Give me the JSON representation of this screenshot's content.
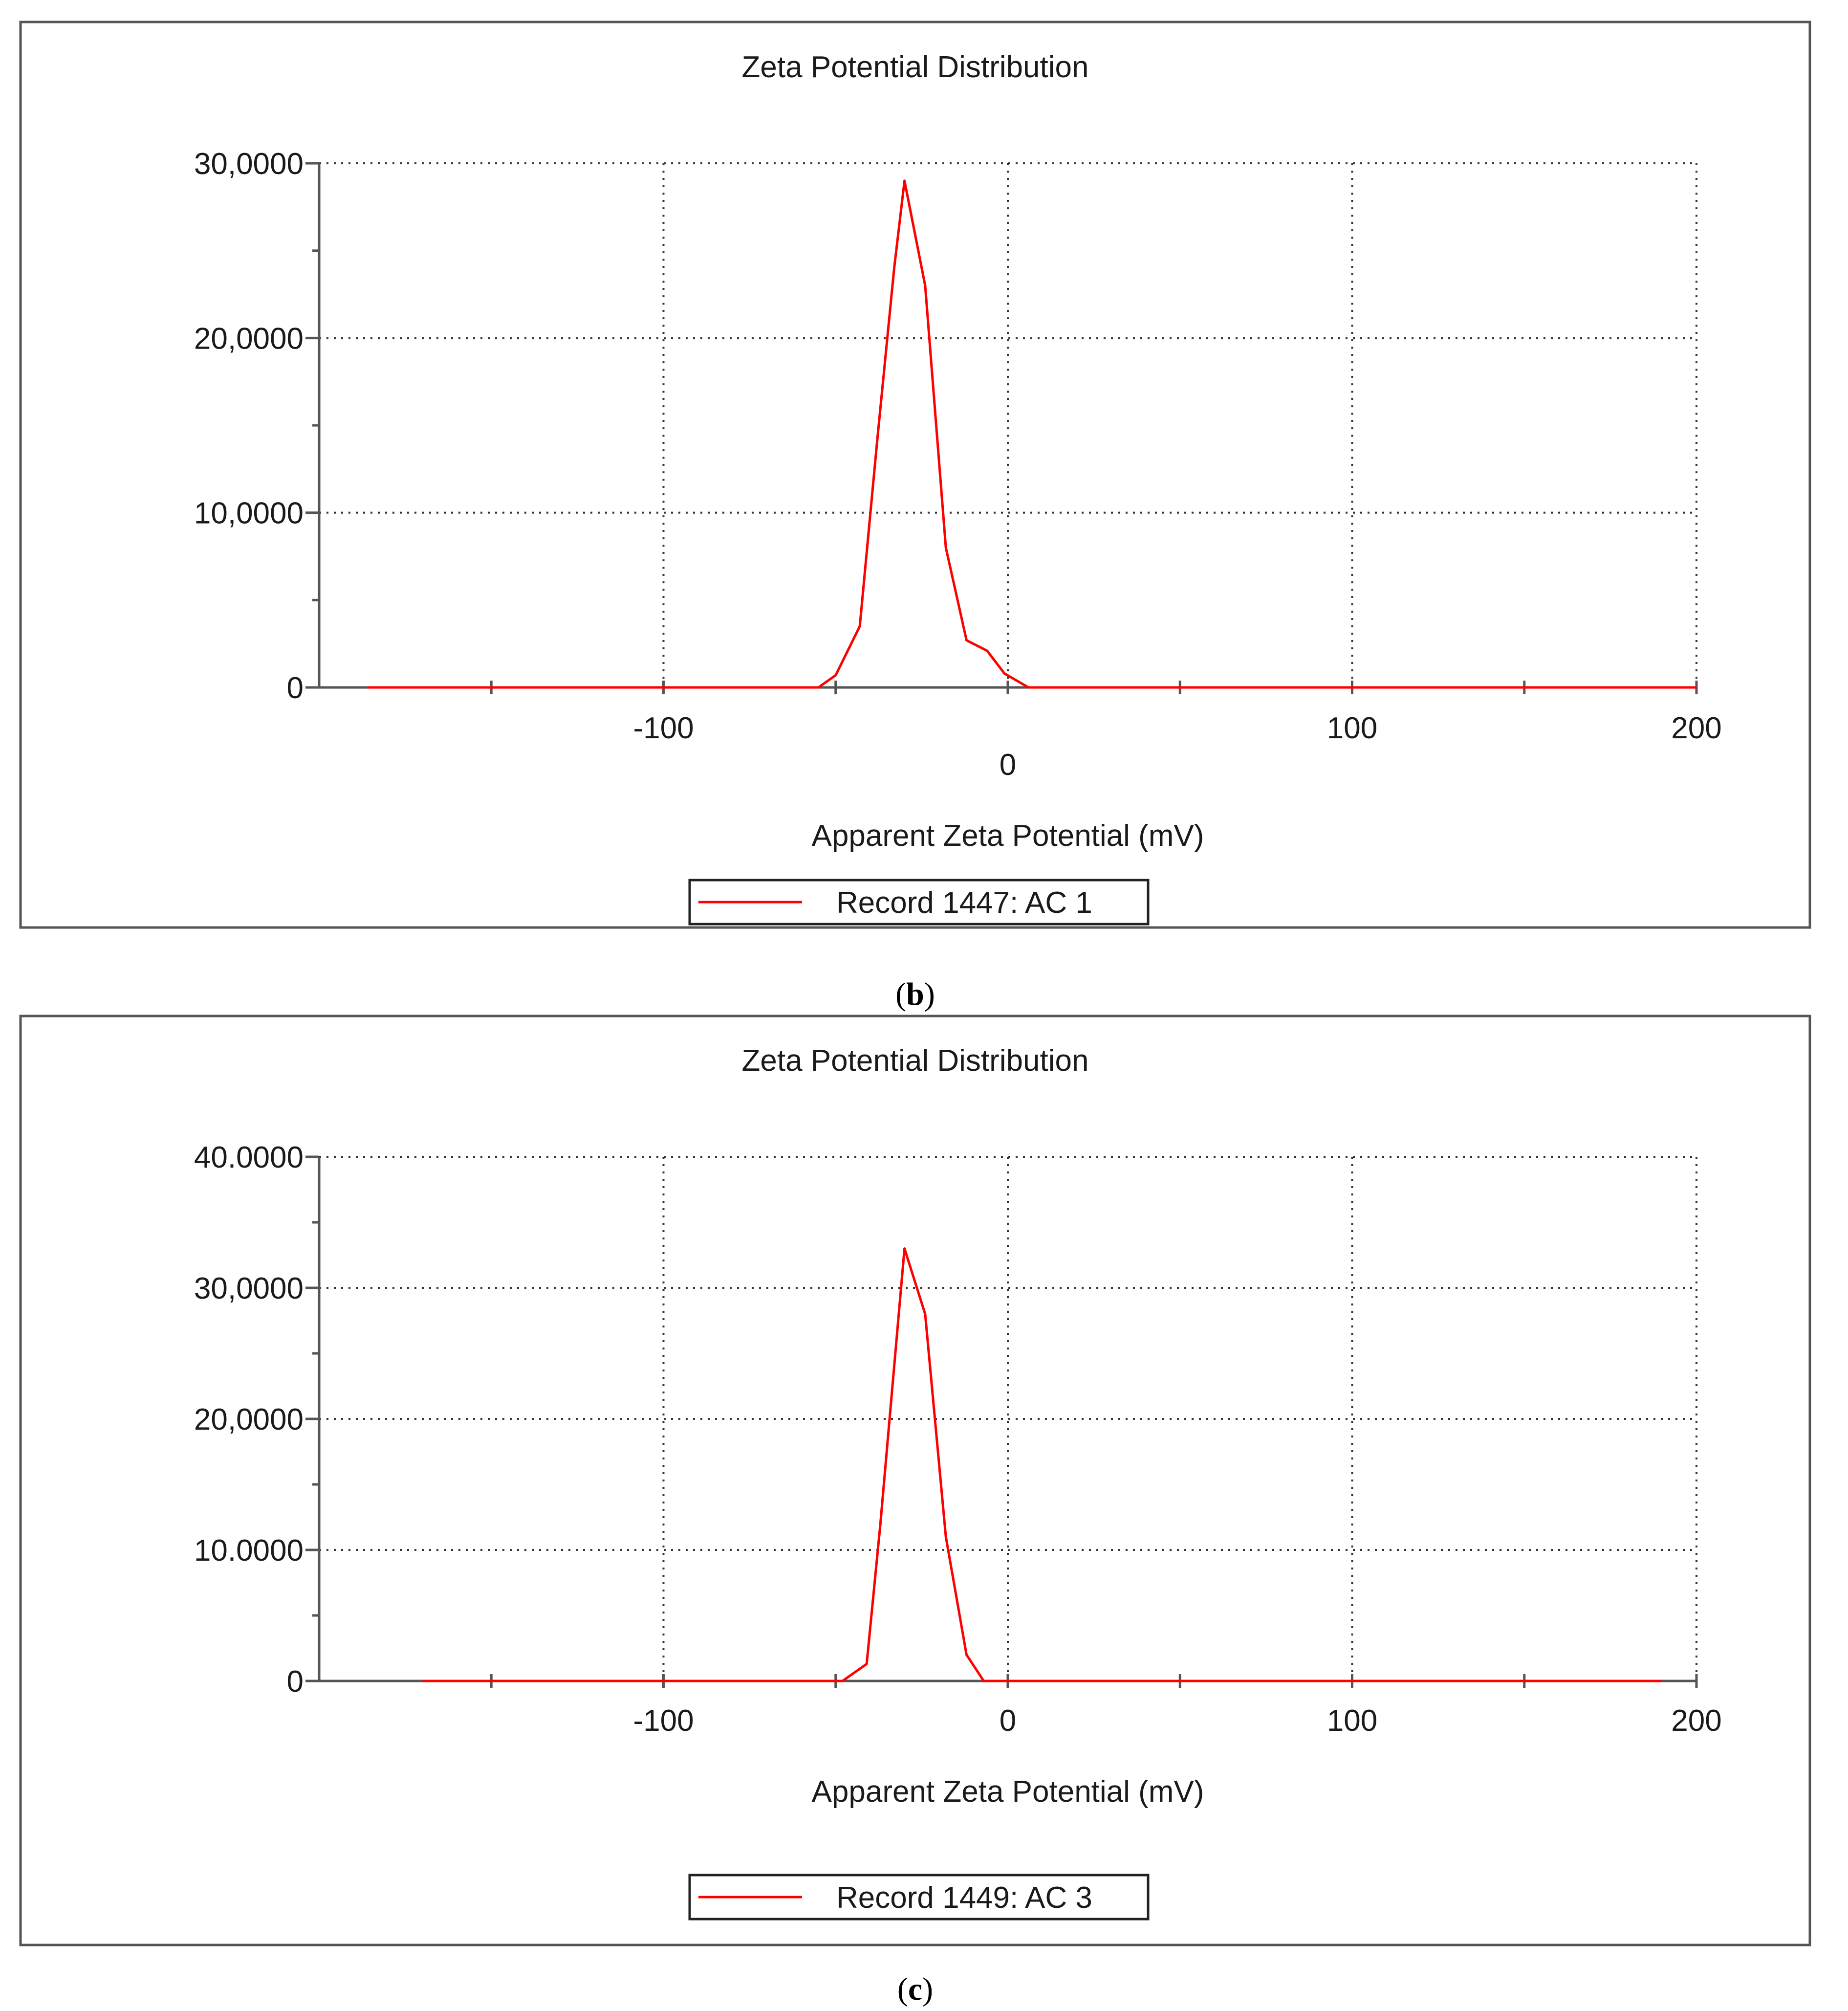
{
  "colors": {
    "series": "#ff0000",
    "frame": "#555555",
    "grid": "#333333",
    "axis": "#555555"
  },
  "panels": [
    {
      "caption_letter": "b",
      "chart_data": {
        "type": "line",
        "title": "Zeta Potential Distribution",
        "xlabel": "Apparent Zeta Potential (mV)",
        "ylabel": "",
        "xlim": [
          -200,
          200
        ],
        "ylim": [
          0,
          30
        ],
        "x_ticks": [
          -100,
          0,
          100,
          200
        ],
        "x_tick_labels": [
          "-100",
          "0",
          "100",
          "200"
        ],
        "y_ticks": [
          0,
          10,
          20,
          30
        ],
        "y_tick_labels": [
          "0",
          "10,0000",
          "20,0000",
          "30,0000"
        ],
        "grid": true,
        "legend_position": "bottom-center",
        "series": [
          {
            "name": "Record 1447: AC 1",
            "color": "#ff0000",
            "x": [
              -186,
              -55,
              -50,
              -43,
              -38,
              -33,
              -30,
              -24,
              -18,
              -12,
              -6,
              -1,
              6,
              200
            ],
            "y": [
              0,
              0,
              0.7,
              3.5,
              14,
              24,
              29,
              23,
              8,
              2.7,
              2.1,
              0.8,
              0,
              0
            ]
          }
        ]
      }
    },
    {
      "caption_letter": "c",
      "chart_data": {
        "type": "line",
        "title": "Zeta Potential Distribution",
        "xlabel": "Apparent Zeta Potential (mV)",
        "ylabel": "",
        "xlim": [
          -200,
          200
        ],
        "ylim": [
          0,
          40
        ],
        "x_ticks": [
          -100,
          0,
          100,
          200
        ],
        "x_tick_labels": [
          "-100",
          "0",
          "100",
          "200"
        ],
        "y_ticks": [
          0,
          10,
          20,
          30,
          40
        ],
        "y_tick_labels": [
          "0",
          "10.0000",
          "20,0000",
          "30,0000",
          "40.0000"
        ],
        "grid": true,
        "legend_position": "bottom-center",
        "series": [
          {
            "name": "Record 1449: AC 3",
            "color": "#ff0000",
            "x": [
              -170,
              -48,
              -41,
              -37,
              -30,
              -24,
              -18,
              -12,
              -7,
              190
            ],
            "y": [
              0,
              0,
              1.3,
              12,
              33,
              28,
              11,
              2,
              0,
              0
            ]
          }
        ]
      }
    }
  ]
}
